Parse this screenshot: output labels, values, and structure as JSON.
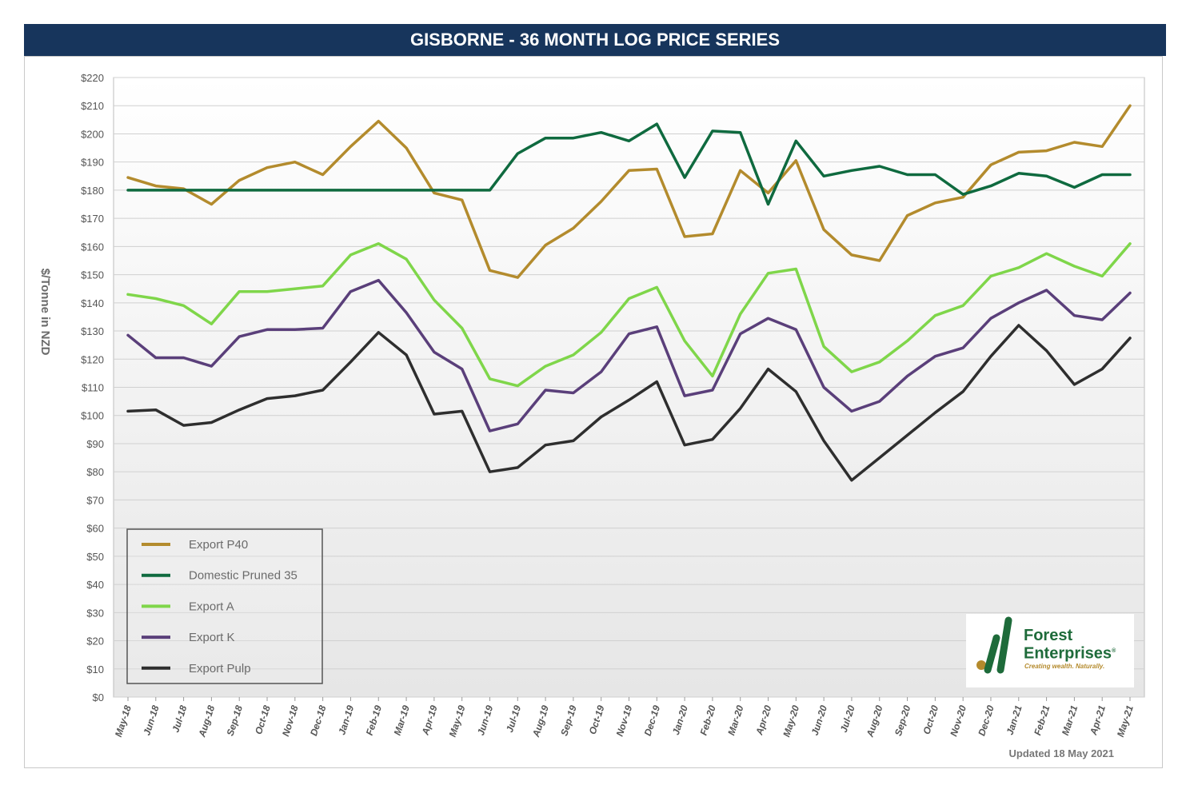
{
  "title": "GISBORNE - 36 MONTH LOG PRICE SERIES",
  "updated_note": "Updated 18 May 2021",
  "logo": {
    "name_line1": "Forest",
    "name_line2": "Enterprises",
    "registered": "®",
    "tagline": "Creating wealth. Naturally."
  },
  "chart_data": {
    "type": "line",
    "title": "GISBORNE - 36 MONTH LOG PRICE SERIES",
    "xlabel": "",
    "ylabel": "$/Tonne in NZD",
    "ylim": [
      0,
      220
    ],
    "ytick_step": 10,
    "ytick_labels": [
      "$0",
      "$10",
      "$20",
      "$30",
      "$40",
      "$50",
      "$60",
      "$70",
      "$80",
      "$90",
      "$100",
      "$110",
      "$120",
      "$130",
      "$140",
      "$150",
      "$160",
      "$170",
      "$180",
      "$190",
      "$200",
      "$210",
      "$220"
    ],
    "grid": true,
    "legend_position": "bottom-left",
    "categories": [
      "May-18",
      "Jun-18",
      "Jul-18",
      "Aug-18",
      "Sep-18",
      "Oct-18",
      "Nov-18",
      "Dec-18",
      "Jan-19",
      "Feb-19",
      "Mar-19",
      "Apr-19",
      "May-19",
      "Jun-19",
      "Jul-19",
      "Aug-19",
      "Sep-19",
      "Oct-19",
      "Nov-19",
      "Dec-19",
      "Jan-20",
      "Feb-20",
      "Mar-20",
      "Apr-20",
      "May-20",
      "Jun-20",
      "Jul-20",
      "Aug-20",
      "Sep-20",
      "Oct-20",
      "Nov-20",
      "Dec-20",
      "Jan-21",
      "Feb-21",
      "Mar-21",
      "Apr-21",
      "May-21"
    ],
    "series": [
      {
        "name": "Export P40",
        "color": "#b38b2d",
        "values": [
          184.5,
          181.5,
          180.5,
          175,
          183.5,
          188,
          190,
          185.5,
          195.5,
          204.5,
          195,
          179,
          176.5,
          151.5,
          149,
          160.5,
          166.5,
          176,
          187,
          187.5,
          163.5,
          164.5,
          187,
          179,
          190.5,
          166,
          157,
          155,
          171,
          175.5,
          177.5,
          189,
          193.5,
          194,
          197,
          195.5,
          210
        ]
      },
      {
        "name": "Domestic Pruned 35",
        "color": "#0f6a3f",
        "values": [
          180,
          180,
          180,
          180,
          180,
          180,
          180,
          180,
          180,
          180,
          180,
          180,
          180,
          180,
          193,
          198.5,
          198.5,
          200.5,
          197.5,
          203.5,
          184.5,
          201,
          200.5,
          175,
          197.5,
          185,
          187,
          188.5,
          185.5,
          185.5,
          178.5,
          181.5,
          186,
          185,
          181,
          185.5,
          185.5
        ]
      },
      {
        "name": "Export A",
        "color": "#7fd64a",
        "values": [
          143,
          141.5,
          139,
          132.5,
          144,
          144,
          145,
          146,
          157,
          161,
          155.5,
          141,
          131,
          113,
          110.5,
          117.5,
          121.5,
          129.5,
          141.5,
          145.5,
          126.5,
          114,
          136,
          150.5,
          152,
          124.5,
          115.5,
          119,
          126.5,
          135.5,
          139,
          149.5,
          152.5,
          157.5,
          153,
          149.5,
          161
        ]
      },
      {
        "name": "Export K",
        "color": "#5a3f7a",
        "values": [
          128.5,
          120.5,
          120.5,
          117.5,
          128,
          130.5,
          130.5,
          131,
          144,
          148,
          136.5,
          122.5,
          116.5,
          94.5,
          97,
          109,
          108,
          115.5,
          129,
          131.5,
          107,
          109,
          129,
          134.5,
          130.5,
          110,
          101.5,
          105,
          114,
          121,
          124,
          134.5,
          140,
          144.5,
          135.5,
          134,
          143.5
        ]
      },
      {
        "name": "Export Pulp",
        "color": "#2e2e2e",
        "values": [
          101.5,
          102,
          96.5,
          97.5,
          102,
          106,
          107,
          109,
          119,
          129.5,
          121.5,
          100.5,
          101.5,
          80,
          81.5,
          89.5,
          91,
          99.5,
          105.5,
          112,
          89.5,
          91.5,
          102.5,
          116.5,
          108.5,
          91,
          77,
          85,
          93,
          101,
          108.5,
          121,
          132,
          123,
          111,
          116.5,
          127.5
        ]
      }
    ]
  }
}
